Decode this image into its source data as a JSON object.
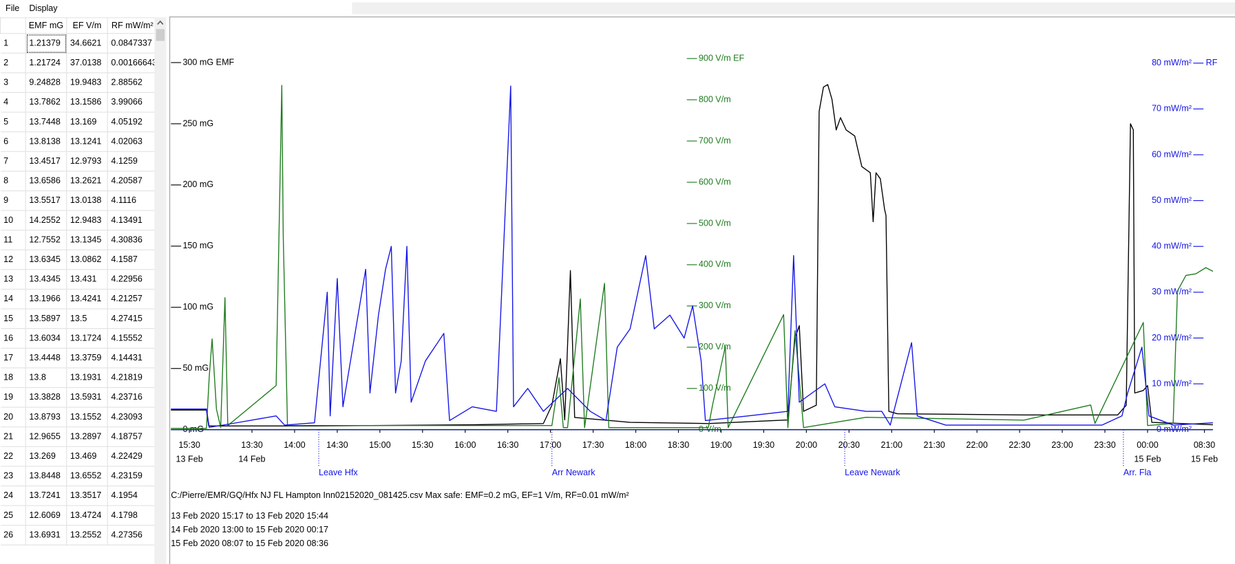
{
  "menu": [
    "File",
    "Display"
  ],
  "table": {
    "columns": [
      "EMF mG",
      "EF V/m",
      "RF mW/m²"
    ],
    "rows": [
      [
        1,
        1.21379,
        34.6621,
        0.0847337
      ],
      [
        2,
        1.21724,
        37.0138,
        0.00166643
      ],
      [
        3,
        9.24828,
        19.9483,
        2.88562
      ],
      [
        4,
        13.7862,
        13.1586,
        3.99066
      ],
      [
        5,
        13.7448,
        13.169,
        4.05192
      ],
      [
        6,
        13.8138,
        13.1241,
        4.02063
      ],
      [
        7,
        13.4517,
        12.9793,
        4.1259
      ],
      [
        8,
        13.6586,
        13.2621,
        4.20587
      ],
      [
        9,
        13.5517,
        13.0138,
        4.1116
      ],
      [
        10,
        14.2552,
        12.9483,
        4.13491
      ],
      [
        11,
        12.7552,
        13.1345,
        4.30836
      ],
      [
        12,
        13.6345,
        13.0862,
        4.1587
      ],
      [
        13,
        13.4345,
        13.431,
        4.22956
      ],
      [
        14,
        13.1966,
        13.4241,
        4.21257
      ],
      [
        15,
        13.5897,
        13.5,
        4.27415
      ],
      [
        16,
        13.6034,
        13.1724,
        4.15552
      ],
      [
        17,
        13.4448,
        13.3759,
        4.14431
      ],
      [
        18,
        13.8,
        13.1931,
        4.21819
      ],
      [
        19,
        13.3828,
        13.5931,
        4.23716
      ],
      [
        20,
        13.8793,
        13.1552,
        4.23093
      ],
      [
        21,
        12.9655,
        13.2897,
        4.18757
      ],
      [
        22,
        13.269,
        13.469,
        4.22429
      ],
      [
        23,
        13.8448,
        13.6552,
        4.23159
      ],
      [
        24,
        13.7241,
        13.3517,
        4.1954
      ],
      [
        25,
        12.6069,
        13.4724,
        4.1798
      ],
      [
        26,
        13.6931,
        13.2552,
        4.27356
      ]
    ]
  },
  "chart_data": {
    "type": "line",
    "xlim": [
      0,
      733
    ],
    "xticks": [
      {
        "value": 13,
        "label": "15:30"
      },
      {
        "value": 57,
        "label": "13:30"
      },
      {
        "value": 87,
        "label": "14:00"
      },
      {
        "value": 117,
        "label": "14:30"
      },
      {
        "value": 147,
        "label": "15:00"
      },
      {
        "value": 177,
        "label": "15:30"
      },
      {
        "value": 207,
        "label": "16:00"
      },
      {
        "value": 237,
        "label": "16:30"
      },
      {
        "value": 267,
        "label": "17:00"
      },
      {
        "value": 297,
        "label": "17:30"
      },
      {
        "value": 327,
        "label": "18:00"
      },
      {
        "value": 357,
        "label": "18:30"
      },
      {
        "value": 387,
        "label": "19:00"
      },
      {
        "value": 417,
        "label": "19:30"
      },
      {
        "value": 447,
        "label": "20:00"
      },
      {
        "value": 477,
        "label": "20:30"
      },
      {
        "value": 507,
        "label": "21:00"
      },
      {
        "value": 537,
        "label": "21:30"
      },
      {
        "value": 567,
        "label": "22:00"
      },
      {
        "value": 597,
        "label": "22:30"
      },
      {
        "value": 627,
        "label": "23:00"
      },
      {
        "value": 657,
        "label": "23:30"
      },
      {
        "value": 687,
        "label": "00:00"
      },
      {
        "value": 727,
        "label": "08:30"
      }
    ],
    "xtick_dates": [
      {
        "value": 13,
        "label": "13 Feb"
      },
      {
        "value": 57,
        "label": "14 Feb"
      },
      {
        "value": 687,
        "label": "15 Feb"
      },
      {
        "value": 727,
        "label": "15 Feb"
      }
    ],
    "ylim": [
      0,
      337
    ],
    "yticks": [
      {
        "value": 0,
        "label": "0 mG"
      },
      {
        "value": 50,
        "label": "50 mG"
      },
      {
        "value": 100,
        "label": "100 mG"
      },
      {
        "value": 150,
        "label": "150 mG"
      },
      {
        "value": 200,
        "label": "200 mG"
      },
      {
        "value": 250,
        "label": "250 mG"
      },
      {
        "value": 300,
        "label": "300 mG EMF"
      }
    ],
    "y2lim": [
      0,
      1000
    ],
    "y2ticks": [
      {
        "value": 0,
        "label": "0 V/m"
      },
      {
        "value": 100,
        "label": "100 V/m"
      },
      {
        "value": 200,
        "label": "200 V/m"
      },
      {
        "value": 300,
        "label": "300 V/m"
      },
      {
        "value": 400,
        "label": "400 V/m"
      },
      {
        "value": 500,
        "label": "500 V/m"
      },
      {
        "value": 600,
        "label": "600 V/m"
      },
      {
        "value": 700,
        "label": "700 V/m"
      },
      {
        "value": 800,
        "label": "800 V/m"
      },
      {
        "value": 900,
        "label": "900 V/m EF"
      }
    ],
    "y3lim": [
      0,
      90
    ],
    "y3ticks": [
      {
        "value": 0,
        "label": "0 mW/m²"
      },
      {
        "value": 10,
        "label": "10 mW/m²"
      },
      {
        "value": 20,
        "label": "20 mW/m²"
      },
      {
        "value": 30,
        "label": "30 mW/m²"
      },
      {
        "value": 40,
        "label": "40 mW/m²"
      },
      {
        "value": 50,
        "label": "50 mW/m²"
      },
      {
        "value": 60,
        "label": "60 mW/m²"
      },
      {
        "value": 70,
        "label": "70 mW/m²"
      },
      {
        "value": 80,
        "label": "80 mW/m²"
      }
    ],
    "y3_title": "RF",
    "series": [
      {
        "color": "#000000",
        "axis": "y",
        "x": [
          0,
          25,
          26.6,
          101,
          212,
          262,
          268,
          274,
          277,
          281,
          284,
          323,
          378,
          434,
          439,
          442,
          445,
          454,
          456,
          459,
          462,
          465,
          468,
          471,
          475,
          481,
          486,
          492,
          494,
          496,
          499,
          502,
          503,
          505,
          511,
          600,
          666,
          672,
          675,
          677,
          678,
          684,
          687,
          690,
          733
        ],
        "values": [
          16,
          16,
          3,
          3,
          4,
          5,
          20,
          58,
          8,
          130,
          10,
          6,
          5,
          8,
          75,
          85,
          15,
          20,
          260,
          280,
          282,
          270,
          245,
          255,
          245,
          240,
          215,
          210,
          170,
          210,
          205,
          180,
          175,
          15,
          13,
          12,
          12,
          20,
          250,
          245,
          30,
          32,
          36,
          6,
          4
        ]
      },
      {
        "color": "#1e7b1e",
        "axis": "y2",
        "x": [
          0,
          25,
          27,
          29,
          32,
          35,
          38,
          40,
          74,
          78,
          79,
          82,
          268,
          273,
          276,
          279,
          288,
          291,
          305,
          308,
          378,
          381,
          390,
          392,
          431,
          434,
          439,
          445,
          489,
          600,
          647,
          650,
          684,
          687,
          705,
          708,
          714,
          721,
          728,
          733
        ],
        "values": [
          3,
          3,
          130,
          220,
          50,
          5,
          320,
          10,
          107,
          835,
          470,
          10,
          10,
          126,
          5,
          5,
          317,
          5,
          355,
          5,
          5,
          60,
          202,
          5,
          279,
          5,
          240,
          5,
          30,
          23,
          60,
          15,
          260,
          10,
          15,
          336,
          374,
          378,
          393,
          384
        ]
      },
      {
        "color": "#1414e6",
        "axis": "y3",
        "x": [
          0,
          25,
          27,
          46,
          74,
          80,
          101,
          110,
          112,
          117,
          121,
          129,
          137,
          140,
          146,
          151,
          155,
          158,
          162,
          166,
          169,
          179,
          192,
          196,
          212,
          229,
          239,
          241,
          251,
          262,
          279,
          295,
          306,
          314,
          323,
          334,
          340,
          351,
          361,
          367,
          373,
          376,
          406,
          434,
          438,
          442,
          451,
          460,
          467,
          489,
          500,
          506,
          521,
          525,
          545,
          600,
          655,
          669,
          673,
          683,
          688,
          705,
          733
        ],
        "values": [
          4.5,
          4.5,
          0.5,
          1.5,
          3,
          1,
          1.5,
          30,
          3,
          33,
          5,
          20,
          35,
          8,
          25,
          35,
          40,
          8,
          15,
          40,
          6,
          15,
          21,
          2,
          5,
          4,
          75,
          5,
          9,
          4,
          9,
          4,
          2,
          18,
          22,
          38,
          22,
          25,
          20,
          27,
          15,
          2,
          3,
          4,
          38,
          6,
          8,
          10,
          5,
          4,
          4,
          1,
          19,
          3,
          1,
          1,
          1,
          3,
          8,
          18,
          3,
          1,
          1.5
        ]
      }
    ],
    "annotations": [
      {
        "x": 104,
        "text": "Leave Hfx"
      },
      {
        "x": 268,
        "text": "Arr Newark"
      },
      {
        "x": 474,
        "text": "Leave Newark"
      },
      {
        "x": 670,
        "text": "Arr. Fla"
      }
    ]
  },
  "notes": {
    "source": "C:/Pierre/EMR/GQ/Hfx NJ FL Hampton Inn02152020_081425.csv   Max safe: EMF=0.2 mG, EF=1 V/m, RF=0.01 mW/m²",
    "ranges": [
      "13 Feb 2020 15:17 to 13 Feb 2020 15:44",
      "14 Feb 2020 13:00 to 15 Feb 2020 00:17",
      "15 Feb 2020 08:07 to 15 Feb 2020 08:36"
    ]
  }
}
